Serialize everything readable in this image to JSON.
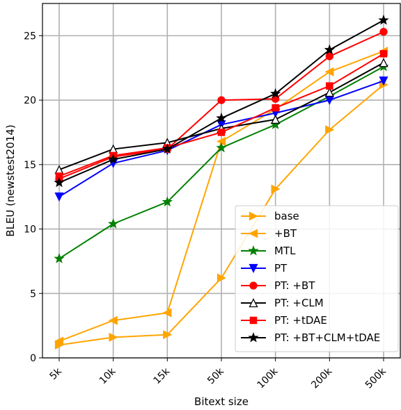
{
  "chart_data": {
    "type": "line",
    "categories": [
      "5k",
      "10k",
      "15k",
      "50k",
      "100k",
      "200k",
      "500k"
    ],
    "xlabel": "Bitext size",
    "ylabel": "BLEU (newstest2014)",
    "ylim": [
      0,
      27.5
    ],
    "yticks": [
      0,
      5,
      10,
      15,
      20,
      25
    ],
    "grid": true,
    "legend_position": "bottom-right",
    "series": [
      {
        "name": "base",
        "color": "#ffa500",
        "marker": "triangle-right",
        "filled": true,
        "values": [
          1.0,
          1.6,
          1.8,
          6.2,
          13.1,
          17.7,
          21.2
        ]
      },
      {
        "name": "+BT",
        "color": "#ffa500",
        "marker": "triangle-left",
        "filled": true,
        "values": [
          1.3,
          2.9,
          3.5,
          16.8,
          19.3,
          22.2,
          23.8
        ]
      },
      {
        "name": "MTL",
        "color": "#008000",
        "marker": "star",
        "filled": true,
        "values": [
          7.7,
          10.4,
          12.1,
          16.3,
          18.1,
          20.3,
          22.6
        ]
      },
      {
        "name": "PT",
        "color": "#0000ff",
        "marker": "triangle-down",
        "filled": true,
        "values": [
          12.5,
          15.1,
          16.1,
          18.1,
          19.0,
          20.0,
          21.5
        ]
      },
      {
        "name": "PT: +BT",
        "color": "#ff0000",
        "marker": "circle",
        "filled": true,
        "values": [
          13.9,
          15.6,
          16.2,
          20.0,
          20.1,
          23.4,
          25.3
        ]
      },
      {
        "name": "PT: +CLM",
        "color": "#000000",
        "marker": "triangle-up",
        "filled": false,
        "values": [
          14.6,
          16.2,
          16.7,
          17.8,
          18.5,
          20.6,
          22.9
        ]
      },
      {
        "name": "PT: +tDAE",
        "color": "#ff0000",
        "marker": "square",
        "filled": true,
        "values": [
          14.1,
          15.7,
          16.3,
          17.5,
          19.4,
          21.1,
          23.6
        ]
      },
      {
        "name": "PT: +BT+CLM+tDAE",
        "color": "#000000",
        "marker": "star",
        "filled": true,
        "values": [
          13.6,
          15.4,
          16.2,
          18.6,
          20.5,
          23.9,
          26.2
        ]
      }
    ]
  }
}
